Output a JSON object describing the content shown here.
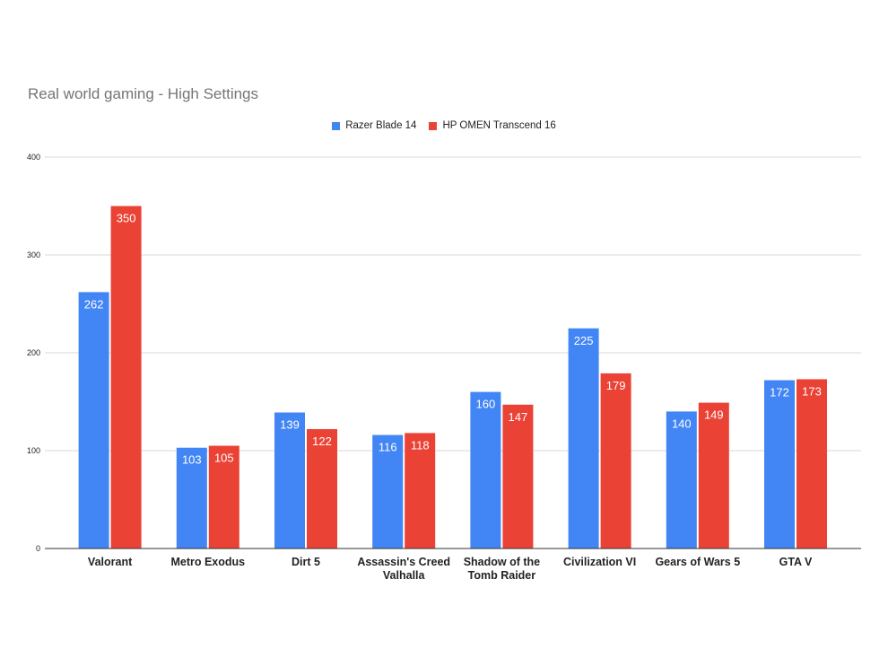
{
  "chart_data": {
    "type": "bar",
    "title": "Real world gaming - High Settings",
    "categories": [
      [
        "Valorant"
      ],
      [
        "Metro Exodus"
      ],
      [
        "Dirt 5"
      ],
      [
        "Assassin's Creed",
        "Valhalla"
      ],
      [
        "Shadow of the",
        "Tomb Raider"
      ],
      [
        "Civilization VI"
      ],
      [
        "Gears of Wars 5"
      ],
      [
        "GTA V"
      ]
    ],
    "series": [
      {
        "name": "Razer Blade 14",
        "color": "#4285f4",
        "values": [
          262,
          103,
          139,
          116,
          160,
          225,
          140,
          172
        ]
      },
      {
        "name": "HP OMEN Transcend 16",
        "color": "#ea4335",
        "values": [
          350,
          105,
          122,
          118,
          147,
          179,
          149,
          173
        ]
      }
    ],
    "ylim": [
      0,
      400
    ],
    "yticks": [
      0,
      100,
      200,
      300,
      400
    ],
    "grid": true,
    "legend_position": "top-center",
    "data_labels": true
  }
}
